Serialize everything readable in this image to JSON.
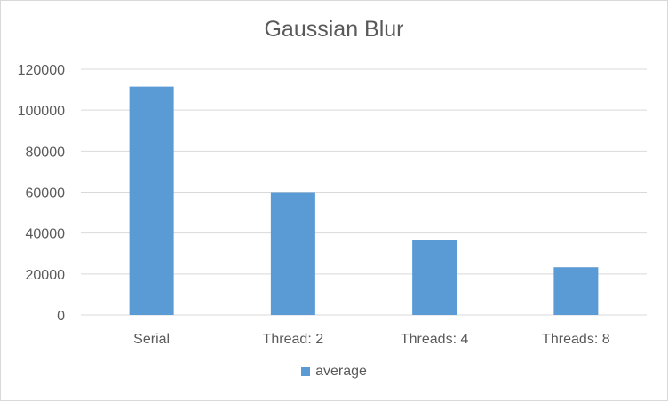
{
  "chart_data": {
    "type": "bar",
    "title": "Gaussian Blur",
    "xlabel": "",
    "ylabel": "",
    "categories": [
      "Serial",
      "Thread: 2",
      "Threads: 4",
      "Threads: 8"
    ],
    "series": [
      {
        "name": "average",
        "values": [
          111500,
          60000,
          36800,
          23300
        ],
        "color": "#5b9bd5"
      }
    ],
    "ylim": [
      0,
      120000
    ],
    "yticks": [
      0,
      20000,
      40000,
      60000,
      80000,
      100000,
      120000
    ],
    "ytick_labels": [
      "0",
      "20000",
      "40000",
      "60000",
      "80000",
      "100000",
      "120000"
    ],
    "grid": true,
    "legend_position": "bottom"
  }
}
